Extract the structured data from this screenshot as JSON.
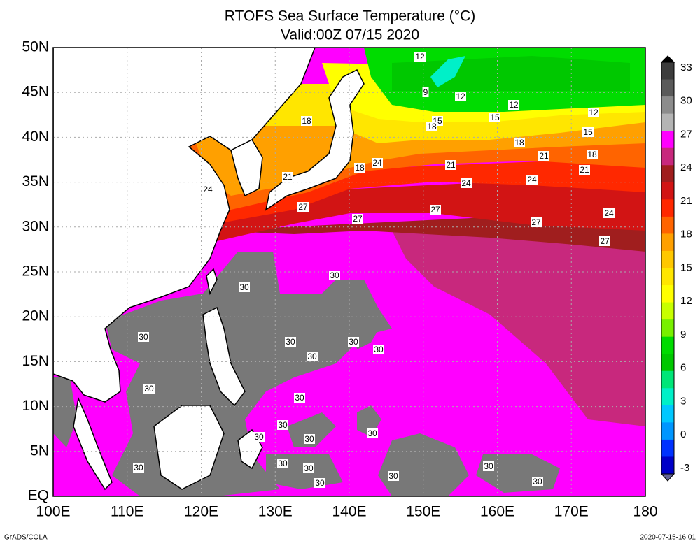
{
  "title": "RTOFS Sea Surface Temperature (°C)",
  "subtitle": "Valid:00Z 07/15 2020",
  "map": {
    "lat_labels": [
      "EQ",
      "5N",
      "10N",
      "15N",
      "20N",
      "25N",
      "30N",
      "35N",
      "40N",
      "45N",
      "50N"
    ],
    "lon_labels": [
      "100E",
      "110E",
      "120E",
      "130E",
      "140E",
      "150E",
      "160E",
      "170E",
      "180"
    ],
    "grid": true
  },
  "colorbar": {
    "labels": [
      33,
      30,
      27,
      24,
      21,
      18,
      15,
      12,
      9,
      6,
      3,
      0,
      -3
    ],
    "colors": [
      "#3c3c3c",
      "#5a5a5a",
      "#8c8c8c",
      "#b4b4b4",
      "#ff00ff",
      "#c8287d",
      "#a01e1e",
      "#d21414",
      "#ff2800",
      "#ff6400",
      "#ffa000",
      "#ffc800",
      "#ffe600",
      "#ffff00",
      "#c8ff00",
      "#78f000",
      "#00dc00",
      "#00c800",
      "#00e678",
      "#00f0c8",
      "#00c8ff",
      "#0096ff",
      "#0032ff",
      "#0000c8"
    ]
  },
  "contour_labels": [
    "12",
    "9",
    "12",
    "12",
    "15",
    "15",
    "18",
    "12",
    "15",
    "18",
    "18",
    "18",
    "21",
    "21",
    "21",
    "24",
    "18",
    "21",
    "24",
    "24",
    "24",
    "24",
    "27",
    "27",
    "27",
    "27",
    "27",
    "30",
    "30",
    "30",
    "30",
    "30",
    "30",
    "30",
    "30",
    "30",
    "30",
    "30",
    "30",
    "30",
    "30",
    "30",
    "30",
    "30",
    "30",
    "30",
    "30"
  ],
  "footer": {
    "left": "GrADS/COLA",
    "right": "2020-07-15-16:01"
  }
}
